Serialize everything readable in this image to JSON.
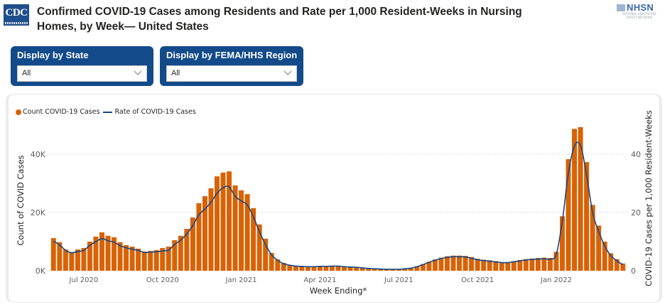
{
  "header": {
    "title": "Confirmed COVID-19 Cases among Residents and Rate per 1,000 Resident-Weeks in Nursing Homes, by Week— United States",
    "cdc_logo_text": "CDC",
    "nhsn_logo_text": "NHSN",
    "nhsn_tagline": "NATIONAL HEALTHCARE SAFETY NETWORK"
  },
  "filters": {
    "state": {
      "label": "Display by State",
      "value": "All"
    },
    "region": {
      "label": "Display by FEMA/HHS Region",
      "value": "All"
    }
  },
  "colors": {
    "bars": "#d96204",
    "line": "#124a8a",
    "slicer_bg": "#124a8a"
  },
  "chart_data": {
    "type": "bar+line",
    "title": "",
    "xlabel": "Week Ending*",
    "ylabel": "Count of COVID Cases",
    "y2label": "COVID-19 Cases per 1,000 Resident-Weeks",
    "ylim": [
      0,
      50000
    ],
    "y2lim": [
      0,
      50
    ],
    "y_ticks": [
      {
        "value": 0,
        "label": "0K"
      },
      {
        "value": 20000,
        "label": "20K"
      },
      {
        "value": 40000,
        "label": "40K"
      }
    ],
    "y2_ticks": [
      {
        "value": 0,
        "label": "0"
      },
      {
        "value": 20,
        "label": "20"
      },
      {
        "value": 40,
        "label": "40"
      }
    ],
    "x_ticks": [
      {
        "index": 5,
        "label": "Jul 2020"
      },
      {
        "index": 18,
        "label": "Oct 2020"
      },
      {
        "index": 31,
        "label": "Jan 2021"
      },
      {
        "index": 44,
        "label": "Apr 2021"
      },
      {
        "index": 57,
        "label": "Jul 2021"
      },
      {
        "index": 70,
        "label": "Oct 2021"
      },
      {
        "index": 83,
        "label": "Jan 2022"
      }
    ],
    "grid": true,
    "legend_position": "top-left",
    "series": [
      {
        "name": "Count COVID-19 Cases",
        "type": "bar",
        "values": [
          11200,
          9800,
          7300,
          6300,
          7300,
          7800,
          10000,
          11700,
          13200,
          12000,
          11500,
          9800,
          8800,
          8300,
          7600,
          6600,
          6800,
          7100,
          7800,
          8300,
          10500,
          12000,
          14400,
          18300,
          23200,
          25600,
          28300,
          32400,
          33700,
          34100,
          29300,
          27600,
          26300,
          21500,
          15900,
          11000,
          6100,
          3900,
          2700,
          2000,
          1700,
          1600,
          1500,
          1500,
          1600,
          1600,
          1700,
          1700,
          1500,
          1400,
          1300,
          1100,
          900,
          700,
          600,
          500,
          500,
          500,
          700,
          900,
          1500,
          2300,
          3100,
          3900,
          4500,
          5000,
          5200,
          5200,
          5100,
          4700,
          4100,
          3800,
          3600,
          3300,
          3000,
          3000,
          3300,
          3700,
          4000,
          4200,
          4400,
          4500,
          4400,
          6500,
          18700,
          38300,
          48700,
          49300,
          37300,
          22600,
          15500,
          10000,
          6000,
          4000,
          2500
        ]
      },
      {
        "name": "Rate of COVID-19 Cases",
        "type": "line",
        "values": [
          10.2,
          8.9,
          7.0,
          6.2,
          6.6,
          7.0,
          8.7,
          10.0,
          11.0,
          10.3,
          9.8,
          8.6,
          7.9,
          7.4,
          7.0,
          6.3,
          6.4,
          6.5,
          6.8,
          7.1,
          9.0,
          10.5,
          12.6,
          15.5,
          19.2,
          21.2,
          23.5,
          26.6,
          28.5,
          28.8,
          25.5,
          24.0,
          22.6,
          18.5,
          13.4,
          9.0,
          5.5,
          3.6,
          2.4,
          1.9,
          1.6,
          1.5,
          1.4,
          1.4,
          1.5,
          1.5,
          1.6,
          1.6,
          1.4,
          1.3,
          1.2,
          1.0,
          0.8,
          0.7,
          0.6,
          0.5,
          0.5,
          0.5,
          0.7,
          0.9,
          1.4,
          2.1,
          2.9,
          3.6,
          4.2,
          4.6,
          4.8,
          4.8,
          4.7,
          4.3,
          3.8,
          3.5,
          3.3,
          3.0,
          2.8,
          2.8,
          3.1,
          3.4,
          3.7,
          3.9,
          4.0,
          4.1,
          4.0,
          5.6,
          17.0,
          33.5,
          42.8,
          43.0,
          33.0,
          20.0,
          13.5,
          8.5,
          5.2,
          3.4,
          2.1
        ]
      }
    ]
  }
}
